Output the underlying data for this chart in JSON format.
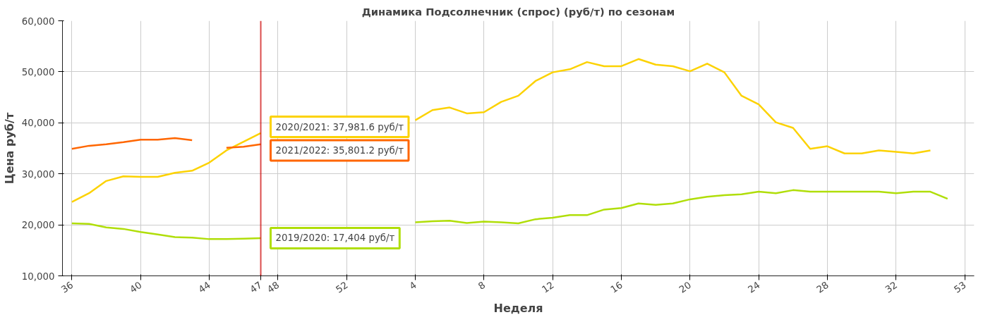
{
  "chart_data": {
    "type": "line",
    "title": "Динамика Подсолнечник (спрос) (руб/т) по сезонам",
    "xlabel": "Неделя",
    "ylabel": "Цена руб/т",
    "categories": [
      "36",
      null,
      null,
      null,
      "40",
      null,
      null,
      null,
      "44",
      null,
      null,
      "47",
      "48",
      null,
      null,
      null,
      "52",
      null,
      null,
      null,
      "4",
      null,
      null,
      null,
      "8",
      null,
      null,
      null,
      "12",
      null,
      null,
      null,
      "16",
      null,
      null,
      null,
      "20",
      null,
      null,
      null,
      "24",
      null,
      null,
      null,
      "28",
      null,
      null,
      null,
      "32",
      null,
      null,
      null,
      "53"
    ],
    "series": [
      {
        "color": "#b0de09",
        "values": [
          20300,
          20200,
          19500,
          19200,
          18600,
          18100,
          17600,
          17500,
          17200,
          17200,
          17300,
          17404,
          null,
          null,
          null,
          null,
          null,
          null,
          null,
          null,
          20500,
          20700,
          20800,
          20350,
          20640,
          20500,
          20300,
          21100,
          21400,
          21900,
          21900,
          23000,
          23300,
          24200,
          23900,
          24200,
          25000,
          25500,
          25800,
          26000,
          26500,
          26200,
          26800,
          26500,
          26500,
          26500,
          26500,
          26500,
          26200,
          26500,
          26500,
          25100,
          null
        ]
      },
      {
        "color": "#fcd202",
        "values": [
          24500,
          26200,
          28600,
          29500,
          29400,
          29400,
          30200,
          30600,
          32200,
          34600,
          36300,
          37981.6,
          null,
          null,
          null,
          null,
          null,
          null,
          null,
          null,
          40500,
          42500,
          43000,
          41850,
          42080,
          44100,
          45300,
          48200,
          49900,
          50500,
          51900,
          51100,
          51100,
          52500,
          51400,
          51100,
          50100,
          51600,
          49900,
          45300,
          43600,
          40100,
          39000,
          34900,
          35400,
          34000,
          34000,
          34600,
          34300,
          34000,
          34600,
          null,
          null
        ]
      },
      {
        "color": "#ff6600",
        "values": [
          34900,
          35500,
          35800,
          36200,
          36700,
          36700,
          37000,
          36600,
          null,
          35100,
          35300,
          35801.2,
          null,
          null,
          null,
          null,
          null,
          null,
          null,
          null,
          null,
          null,
          null,
          null,
          null,
          null,
          null,
          null,
          null,
          null,
          null,
          null,
          null,
          null,
          null,
          null,
          null,
          null,
          null,
          null,
          null,
          null,
          null,
          null,
          null,
          null,
          null,
          null,
          null,
          null,
          null,
          null,
          null
        ]
      }
    ],
    "ylim": [
      10000,
      60000
    ],
    "yticks": [
      {
        "value": 10000,
        "label": "10,000"
      },
      {
        "value": 20000,
        "label": "20,000"
      },
      {
        "value": 30000,
        "label": "30,000"
      },
      {
        "value": 40000,
        "label": "40,000"
      },
      {
        "value": 50000,
        "label": "50,000"
      },
      {
        "value": 60000,
        "label": "60,000"
      }
    ],
    "grid": true,
    "ref_lines": [
      {
        "axis": "x",
        "value": "47",
        "color": "#cc0000"
      }
    ],
    "annotations": [
      {
        "text": "2020/2021: 37,981.6 руб/т",
        "x": "47",
        "y": 37981.6
      },
      {
        "text": "2021/2022: 35,801.2 руб/т",
        "x": "47",
        "y": 35801.2
      },
      {
        "text": "2019/2020: 17,404 руб/т",
        "x": "47",
        "y": 17404
      }
    ]
  }
}
